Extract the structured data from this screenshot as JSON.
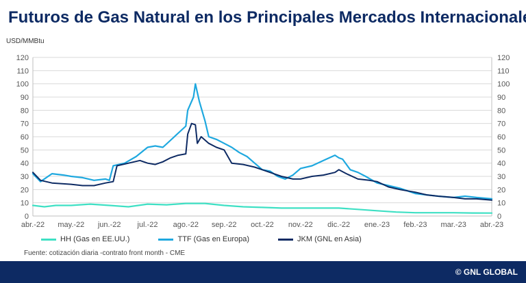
{
  "title": "Futuros de Gas Natural en los Principales Mercados Internacionales",
  "unit_label": "USD/MMBtu",
  "source": "Fuente: cotización diaria -contrato front month - CME",
  "footer_brand": "© GNL GLOBAL",
  "chart_data": {
    "type": "line",
    "ylim": [
      0,
      120
    ],
    "yticks": [
      "0",
      "10",
      "20",
      "30",
      "40",
      "50",
      "60",
      "70",
      "80",
      "90",
      "100",
      "110",
      "120"
    ],
    "categories": [
      "abr.-22",
      "may.-22",
      "jun.-22",
      "jul.-22",
      "ago.-22",
      "sep.-22",
      "oct.-22",
      "nov.-22",
      "dic.-22",
      "ene.-23",
      "feb.-23",
      "mar.-23",
      "abr.-23"
    ],
    "grid": true,
    "legend_position": "bottom",
    "series": [
      {
        "name": "HH (Gas en EE.UU.)",
        "color": "#3ee0c4",
        "values": [
          [
            0,
            8
          ],
          [
            0.3,
            7
          ],
          [
            0.6,
            8
          ],
          [
            1,
            8
          ],
          [
            1.5,
            9
          ],
          [
            2,
            8
          ],
          [
            2.5,
            7
          ],
          [
            3,
            9
          ],
          [
            3.5,
            8.5
          ],
          [
            4,
            9.5
          ],
          [
            4.5,
            9.5
          ],
          [
            5,
            8
          ],
          [
            5.5,
            7
          ],
          [
            6,
            6.5
          ],
          [
            6.5,
            6
          ],
          [
            7,
            6
          ],
          [
            7.5,
            6
          ],
          [
            8,
            6
          ],
          [
            8.5,
            5
          ],
          [
            9,
            4
          ],
          [
            9.5,
            3
          ],
          [
            10,
            2.5
          ],
          [
            10.5,
            2.5
          ],
          [
            11,
            2.5
          ],
          [
            11.5,
            2.3
          ],
          [
            12,
            2.2
          ]
        ]
      },
      {
        "name": "TTF (Gas en Europa)",
        "color": "#1ea8df",
        "values": [
          [
            0,
            32
          ],
          [
            0.2,
            26
          ],
          [
            0.5,
            32
          ],
          [
            0.8,
            31
          ],
          [
            1,
            30
          ],
          [
            1.3,
            29
          ],
          [
            1.6,
            27
          ],
          [
            1.9,
            28
          ],
          [
            2,
            27
          ],
          [
            2.1,
            38
          ],
          [
            2.4,
            40
          ],
          [
            2.7,
            45
          ],
          [
            3,
            52
          ],
          [
            3.2,
            53
          ],
          [
            3.4,
            52
          ],
          [
            3.7,
            60
          ],
          [
            4,
            68
          ],
          [
            4.05,
            80
          ],
          [
            4.2,
            90
          ],
          [
            4.25,
            100
          ],
          [
            4.35,
            87
          ],
          [
            4.5,
            72
          ],
          [
            4.6,
            60
          ],
          [
            4.8,
            58
          ],
          [
            5,
            55
          ],
          [
            5.2,
            52
          ],
          [
            5.4,
            48
          ],
          [
            5.6,
            45
          ],
          [
            5.8,
            40
          ],
          [
            6,
            35
          ],
          [
            6.2,
            34
          ],
          [
            6.4,
            30
          ],
          [
            6.6,
            28
          ],
          [
            6.8,
            31
          ],
          [
            7,
            36
          ],
          [
            7.3,
            38
          ],
          [
            7.6,
            42
          ],
          [
            7.9,
            46
          ],
          [
            8,
            44
          ],
          [
            8.1,
            43
          ],
          [
            8.3,
            35
          ],
          [
            8.5,
            33
          ],
          [
            8.7,
            30
          ],
          [
            9,
            25
          ],
          [
            9.3,
            23
          ],
          [
            9.6,
            21
          ],
          [
            10,
            17
          ],
          [
            10.3,
            16
          ],
          [
            10.6,
            15
          ],
          [
            11,
            14
          ],
          [
            11.3,
            15
          ],
          [
            11.6,
            14
          ],
          [
            12,
            13
          ]
        ]
      },
      {
        "name": "JKM (GNL en Asia)",
        "color": "#0d2a63",
        "values": [
          [
            0,
            33
          ],
          [
            0.2,
            27
          ],
          [
            0.5,
            25
          ],
          [
            1,
            24
          ],
          [
            1.3,
            23
          ],
          [
            1.6,
            23
          ],
          [
            1.9,
            25
          ],
          [
            2.1,
            26
          ],
          [
            2.2,
            38
          ],
          [
            2.5,
            40
          ],
          [
            2.8,
            42
          ],
          [
            3,
            40
          ],
          [
            3.2,
            39
          ],
          [
            3.4,
            41
          ],
          [
            3.6,
            44
          ],
          [
            3.8,
            46
          ],
          [
            4,
            47
          ],
          [
            4.05,
            62
          ],
          [
            4.15,
            70
          ],
          [
            4.25,
            69
          ],
          [
            4.3,
            55
          ],
          [
            4.4,
            60
          ],
          [
            4.6,
            55
          ],
          [
            4.8,
            52
          ],
          [
            5,
            50
          ],
          [
            5.2,
            40
          ],
          [
            5.5,
            39
          ],
          [
            5.8,
            37
          ],
          [
            6,
            35
          ],
          [
            6.2,
            33
          ],
          [
            6.5,
            30
          ],
          [
            6.8,
            28
          ],
          [
            7,
            28
          ],
          [
            7.3,
            30
          ],
          [
            7.6,
            31
          ],
          [
            7.9,
            33
          ],
          [
            8,
            35
          ],
          [
            8.2,
            32
          ],
          [
            8.5,
            28
          ],
          [
            8.8,
            27
          ],
          [
            9,
            26
          ],
          [
            9.3,
            22
          ],
          [
            9.6,
            20
          ],
          [
            10,
            18
          ],
          [
            10.3,
            16
          ],
          [
            10.6,
            15
          ],
          [
            11,
            14
          ],
          [
            11.3,
            13
          ],
          [
            11.6,
            13
          ],
          [
            12,
            12
          ]
        ]
      }
    ]
  }
}
